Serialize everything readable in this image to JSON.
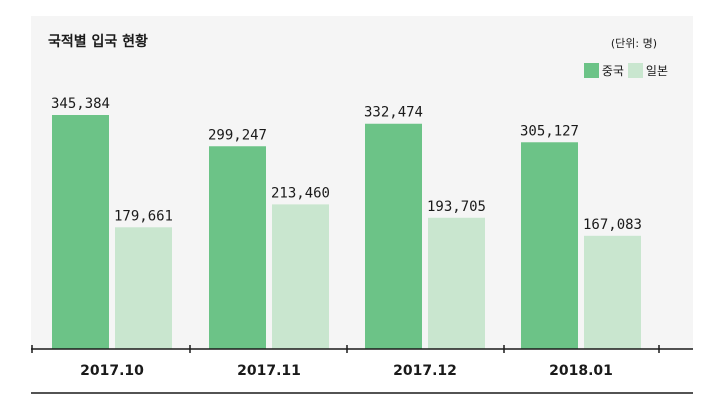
{
  "chart_data": {
    "type": "bar",
    "title": "국적별 입국 현황",
    "unit_label": "(단위: 명)",
    "categories": [
      "2017.10",
      "2017.11",
      "2017.12",
      "2018.01"
    ],
    "series": [
      {
        "name": "중국",
        "color": "#6cc387",
        "values": [
          345384,
          299247,
          332474,
          305127
        ]
      },
      {
        "name": "일본",
        "color": "#c9e6cf",
        "values": [
          179661,
          213460,
          193705,
          167083
        ]
      }
    ],
    "value_labels": [
      [
        "345,384",
        "299,247",
        "332,474",
        "305,127"
      ],
      [
        "179,661",
        "213,460",
        "193,705",
        "167,083"
      ]
    ],
    "ylim": [
      0,
      350000
    ],
    "grid": false,
    "legend_position": "top-right"
  }
}
